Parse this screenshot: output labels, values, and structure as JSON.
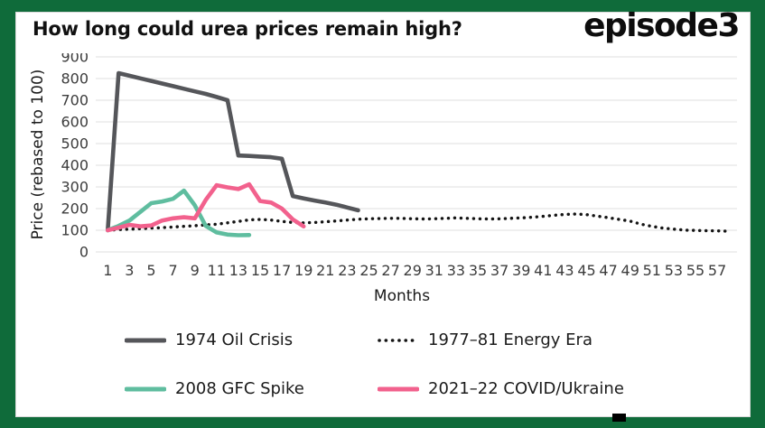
{
  "frame": {
    "background": "#0f6b3a",
    "card_background": "#ffffff"
  },
  "header": {
    "title": "How long could urea prices remain high?",
    "logo": "episode3"
  },
  "chart_data": {
    "type": "line",
    "title": "How long could urea prices remain high?",
    "xlabel": "Months",
    "ylabel": "Price (rebased to 100)",
    "x_start_month": 1,
    "xticks": [
      1,
      3,
      5,
      7,
      9,
      11,
      13,
      15,
      17,
      19,
      21,
      23,
      25,
      27,
      29,
      31,
      33,
      35,
      37,
      39,
      41,
      43,
      45,
      47,
      49,
      51,
      53,
      55,
      57
    ],
    "ylim": [
      0,
      900
    ],
    "ytick_step": 100,
    "grid": "horizontal",
    "legend_position": "bottom",
    "colors": {
      "grid": "#eaeaea",
      "tick": "#3c3c3c",
      "text": "#111111"
    },
    "series": [
      {
        "id": "oil-crisis",
        "name": "1974 Oil Crisis",
        "color": "#55565a",
        "style": "solid",
        "values": [
          100,
          825,
          813,
          801,
          789,
          777,
          765,
          753,
          741,
          729,
          715,
          700,
          445,
          443,
          440,
          437,
          430,
          258,
          247,
          237,
          228,
          218,
          205,
          192
        ]
      },
      {
        "id": "energy-era",
        "name": "1977–81 Energy Era",
        "color": "#141414",
        "style": "dotted",
        "values": [
          100,
          103,
          105,
          107,
          110,
          112,
          115,
          118,
          121,
          125,
          128,
          134,
          141,
          148,
          150,
          147,
          141,
          136,
          134,
          136,
          139,
          143,
          147,
          151,
          153,
          154,
          155,
          155,
          153,
          152,
          153,
          155,
          157,
          155,
          153,
          152,
          153,
          155,
          157,
          160,
          164,
          169,
          173,
          175,
          172,
          165,
          158,
          150,
          142,
          128,
          118,
          110,
          105,
          101,
          99,
          98,
          97,
          96
        ]
      },
      {
        "id": "gfc-spike",
        "name": "2008 GFC Spike",
        "color": "#5fbd9f",
        "style": "solid",
        "values": [
          100,
          120,
          145,
          185,
          225,
          233,
          245,
          283,
          215,
          120,
          90,
          80,
          77,
          78
        ]
      },
      {
        "id": "covid-ukraine",
        "name": "2021–22 COVID/Ukraine",
        "color": "#f2618d",
        "style": "solid",
        "values": [
          100,
          112,
          125,
          118,
          122,
          145,
          155,
          160,
          155,
          240,
          308,
          298,
          290,
          312,
          235,
          228,
          200,
          150,
          118
        ]
      }
    ]
  }
}
